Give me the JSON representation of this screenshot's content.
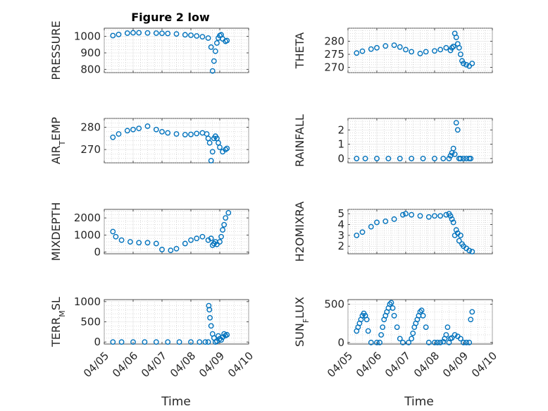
{
  "title": "Figure 2 low",
  "x_axis_label": "Time",
  "x_tick_labels": [
    "04/05",
    "04/06",
    "04/07",
    "04/08",
    "04/09",
    "04/10"
  ],
  "chart_data": [
    {
      "type": "scatter",
      "ylabel": "PRESSURE",
      "xlim": [
        "04/05",
        "04/10"
      ],
      "ylim": [
        780,
        1050
      ],
      "yticks": [
        800,
        900,
        1000
      ],
      "x": [
        0.3,
        0.5,
        0.8,
        1.0,
        1.2,
        1.5,
        1.8,
        2.0,
        2.2,
        2.5,
        2.8,
        3.0,
        3.2,
        3.4,
        3.6,
        3.7,
        3.75,
        3.8,
        3.85,
        3.9,
        3.95,
        4.0,
        4.05,
        4.1,
        4.2,
        4.25
      ],
      "y": [
        1005,
        1012,
        1020,
        1022,
        1022,
        1021,
        1020,
        1019,
        1018,
        1015,
        1010,
        1007,
        1003,
        998,
        990,
        935,
        790,
        850,
        910,
        960,
        990,
        1005,
        1010,
        985,
        970,
        975
      ]
    },
    {
      "type": "scatter",
      "ylabel": "THETA",
      "xlim": [
        "04/05",
        "04/10"
      ],
      "ylim": [
        268,
        285
      ],
      "yticks": [
        270,
        275,
        280
      ],
      "x": [
        0.3,
        0.5,
        0.8,
        1.0,
        1.3,
        1.6,
        1.8,
        2.0,
        2.2,
        2.5,
        2.7,
        3.0,
        3.2,
        3.4,
        3.55,
        3.6,
        3.65,
        3.7,
        3.75,
        3.8,
        3.85,
        3.9,
        3.95,
        4.0,
        4.1,
        4.2,
        4.3
      ],
      "y": [
        275.5,
        276.2,
        277,
        277.5,
        278.2,
        278.5,
        277.8,
        276.8,
        276,
        275.3,
        276,
        276.3,
        276.8,
        277.5,
        276.5,
        277.5,
        278,
        283,
        281.5,
        279,
        277.5,
        275,
        272.5,
        271.5,
        271,
        270.5,
        271.5
      ]
    },
    {
      "type": "scatter",
      "ylabel": "AIR_TEMP",
      "xlim": [
        "04/05",
        "04/10"
      ],
      "ylim": [
        264,
        284
      ],
      "yticks": [
        270,
        280
      ],
      "x": [
        0.3,
        0.5,
        0.8,
        1.0,
        1.2,
        1.5,
        1.8,
        2.0,
        2.2,
        2.5,
        2.8,
        3.0,
        3.2,
        3.4,
        3.55,
        3.6,
        3.65,
        3.7,
        3.75,
        3.8,
        3.85,
        3.9,
        3.95,
        4.0,
        4.1,
        4.2,
        4.25
      ],
      "y": [
        275.5,
        277,
        278.5,
        279,
        279.5,
        280.5,
        279,
        278,
        277.5,
        277,
        276.7,
        276.8,
        277.2,
        277.5,
        277,
        275,
        273,
        265,
        269,
        275,
        276,
        275,
        273,
        271,
        269,
        270,
        270.5
      ]
    },
    {
      "type": "scatter",
      "ylabel": "RAINFALL",
      "xlim": [
        "04/05",
        "04/10"
      ],
      "ylim": [
        -0.3,
        2.8
      ],
      "yticks": [
        0,
        1,
        2
      ],
      "x": [
        0.3,
        0.6,
        1.0,
        1.4,
        1.8,
        2.2,
        2.6,
        3.0,
        3.3,
        3.5,
        3.55,
        3.6,
        3.65,
        3.7,
        3.75,
        3.8,
        3.85,
        3.9,
        4.0,
        4.1,
        4.2,
        4.25
      ],
      "y": [
        0,
        0,
        0,
        0,
        0,
        0,
        0,
        0,
        0,
        0,
        0.2,
        0.4,
        0.7,
        0.3,
        2.5,
        2.0,
        0,
        0,
        0,
        0,
        0,
        0
      ]
    },
    {
      "type": "scatter",
      "ylabel": "MIXDEPTH",
      "xlim": [
        "04/05",
        "04/10"
      ],
      "ylim": [
        -100,
        2500
      ],
      "yticks": [
        0,
        1000,
        2000
      ],
      "x": [
        0.3,
        0.4,
        0.6,
        0.9,
        1.2,
        1.5,
        1.8,
        2.0,
        2.3,
        2.5,
        2.8,
        3.0,
        3.2,
        3.4,
        3.6,
        3.7,
        3.75,
        3.8,
        3.85,
        3.9,
        4.0,
        4.05,
        4.1,
        4.15,
        4.2,
        4.3
      ],
      "y": [
        1200,
        900,
        700,
        600,
        550,
        550,
        500,
        150,
        100,
        200,
        500,
        700,
        800,
        900,
        700,
        800,
        400,
        500,
        600,
        450,
        600,
        900,
        1300,
        1600,
        2000,
        2300
      ]
    },
    {
      "type": "scatter",
      "ylabel": "H2OMIXRA",
      "xlim": [
        "04/05",
        "04/10"
      ],
      "ylim": [
        1.3,
        5.4
      ],
      "yticks": [
        2,
        3,
        4,
        5
      ],
      "x": [
        0.3,
        0.5,
        0.8,
        1.0,
        1.3,
        1.6,
        1.9,
        2.0,
        2.2,
        2.5,
        2.8,
        3.0,
        3.2,
        3.4,
        3.5,
        3.55,
        3.6,
        3.65,
        3.7,
        3.75,
        3.8,
        3.85,
        3.9,
        3.95,
        4.0,
        4.1,
        4.2,
        4.3
      ],
      "y": [
        3.0,
        3.3,
        3.8,
        4.2,
        4.3,
        4.5,
        4.9,
        5.0,
        4.9,
        4.8,
        4.7,
        4.8,
        4.8,
        4.9,
        5.0,
        4.8,
        4.5,
        4.2,
        3.0,
        3.5,
        3.2,
        2.5,
        3.0,
        2.2,
        2.0,
        1.8,
        1.6,
        1.5
      ]
    },
    {
      "type": "scatter",
      "ylabel": "TERR_MSL",
      "xlim": [
        "04/05",
        "04/10"
      ],
      "ylim": [
        -50,
        1050
      ],
      "yticks": [
        0,
        500,
        1000
      ],
      "x": [
        0.3,
        0.6,
        1.0,
        1.4,
        1.8,
        2.2,
        2.6,
        3.0,
        3.3,
        3.5,
        3.6,
        3.62,
        3.64,
        3.66,
        3.7,
        3.75,
        3.8,
        3.85,
        3.9,
        3.95,
        4.0,
        4.05,
        4.1,
        4.15,
        4.2,
        4.25
      ],
      "y": [
        0,
        0,
        0,
        0,
        0,
        0,
        0,
        0,
        0,
        0,
        0,
        900,
        800,
        600,
        400,
        200,
        100,
        0,
        20,
        150,
        80,
        50,
        120,
        200,
        160,
        180
      ]
    },
    {
      "type": "scatter",
      "ylabel": "SUN_FLUX",
      "xlim": [
        "04/05",
        "04/10"
      ],
      "ylim": [
        -20,
        560
      ],
      "yticks": [
        0,
        500
      ],
      "x": [
        0.3,
        0.35,
        0.4,
        0.45,
        0.5,
        0.55,
        0.6,
        0.65,
        0.7,
        0.8,
        1.0,
        1.1,
        1.15,
        1.2,
        1.25,
        1.3,
        1.35,
        1.4,
        1.45,
        1.5,
        1.55,
        1.6,
        1.7,
        1.8,
        1.9,
        2.1,
        2.2,
        2.25,
        2.3,
        2.35,
        2.4,
        2.45,
        2.5,
        2.55,
        2.6,
        2.7,
        2.8,
        3.0,
        3.1,
        3.2,
        3.3,
        3.35,
        3.4,
        3.45,
        3.5,
        3.55,
        3.6,
        3.7,
        3.8,
        3.9,
        4.0,
        4.1,
        4.2,
        4.25,
        4.3
      ],
      "y": [
        150,
        200,
        250,
        300,
        350,
        380,
        350,
        300,
        150,
        0,
        0,
        0,
        100,
        200,
        300,
        350,
        400,
        450,
        500,
        520,
        450,
        350,
        200,
        50,
        0,
        0,
        50,
        120,
        200,
        250,
        300,
        350,
        400,
        420,
        350,
        200,
        0,
        0,
        0,
        0,
        10,
        50,
        100,
        200,
        0,
        50,
        60,
        100,
        80,
        50,
        0,
        0,
        0,
        300,
        400
      ]
    }
  ]
}
